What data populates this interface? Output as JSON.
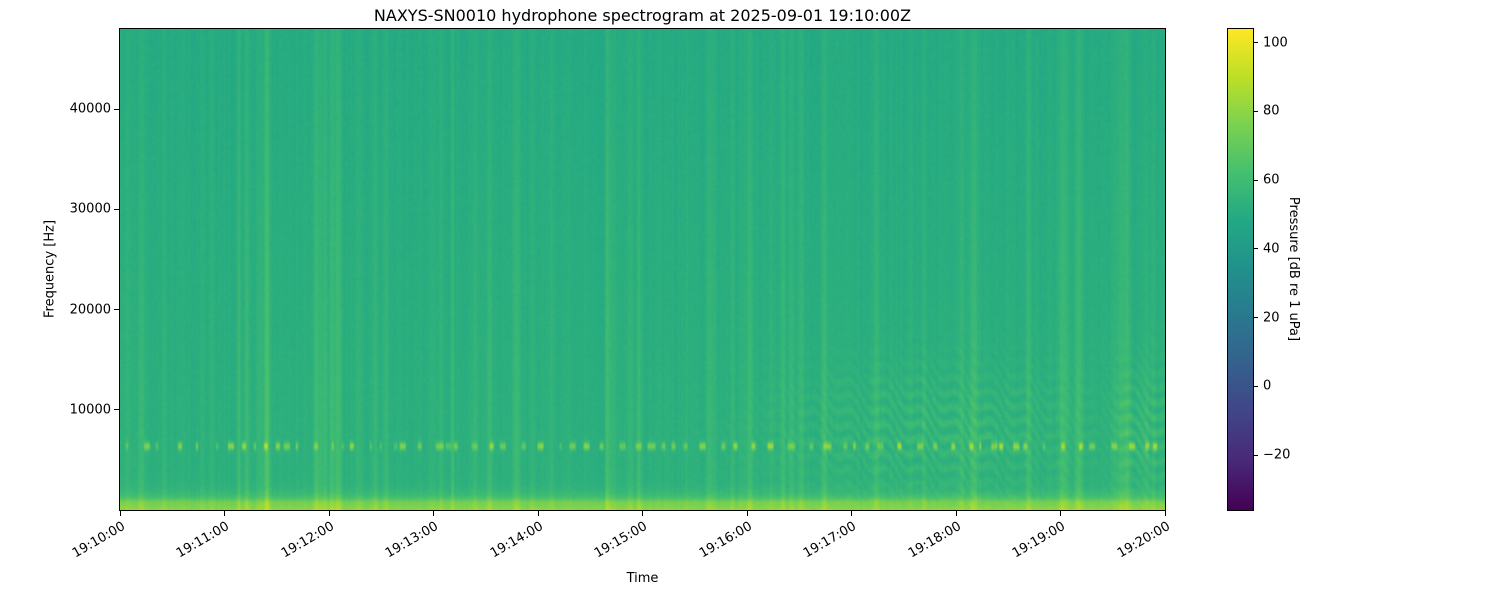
{
  "chart_data": {
    "type": "heatmap",
    "title": "NAXYS-SN0010 hydrophone spectrogram at 2025-09-01 19:10:00Z",
    "xlabel": "Time",
    "ylabel": "Frequency [Hz]",
    "colormap": "viridis",
    "x_ticks": [
      "19:10:00",
      "19:11:00",
      "19:12:00",
      "19:13:00",
      "19:14:00",
      "19:15:00",
      "19:16:00",
      "19:17:00",
      "19:18:00",
      "19:19:00",
      "19:20:00"
    ],
    "x_range_s": [
      0,
      600
    ],
    "y_ticks": [
      10000,
      20000,
      30000,
      40000
    ],
    "y_tick_labels": [
      "10000",
      "20000",
      "30000",
      "40000"
    ],
    "ylim_hz": [
      0,
      48000
    ],
    "colorbar": {
      "label": "Pressure [dB re 1 uPa]",
      "tick_labels": [
        "100",
        "80",
        "60",
        "40",
        "20",
        "0",
        "−20"
      ],
      "tick_values": [
        100,
        80,
        60,
        40,
        20,
        0,
        -20
      ],
      "vmin": -36,
      "vmax": 104
    },
    "colormap_anchors": [
      [
        0.0,
        "#440154"
      ],
      [
        0.1,
        "#482878"
      ],
      [
        0.2,
        "#414487"
      ],
      [
        0.3,
        "#355f8d"
      ],
      [
        0.4,
        "#2a788e"
      ],
      [
        0.5,
        "#21918c"
      ],
      [
        0.6,
        "#22a884"
      ],
      [
        0.7,
        "#44bf70"
      ],
      [
        0.8,
        "#7ad151"
      ],
      [
        0.9,
        "#bddf26"
      ],
      [
        1.0,
        "#fde725"
      ]
    ],
    "seed": 20250901,
    "background_level_db": 53,
    "features": [
      {
        "name": "surface-noise-low-band",
        "freq_range_hz": [
          0,
          1800
        ],
        "peak_level_db": 79
      },
      {
        "name": "tonal-click-train",
        "center_freq_hz": 6300,
        "bandwidth_hz": 700,
        "level_db_range": [
          65,
          85
        ],
        "interval_s_range": [
          4,
          13
        ]
      },
      {
        "name": "broadband-vertical-transients",
        "count": 70,
        "level_db_range": [
          55,
          64
        ]
      },
      {
        "name": "vessel-striation-patches",
        "time_centers_s": [
          470,
          588
        ],
        "freq_range_hz": [
          1500,
          19000
        ],
        "level_db": 60
      }
    ]
  }
}
